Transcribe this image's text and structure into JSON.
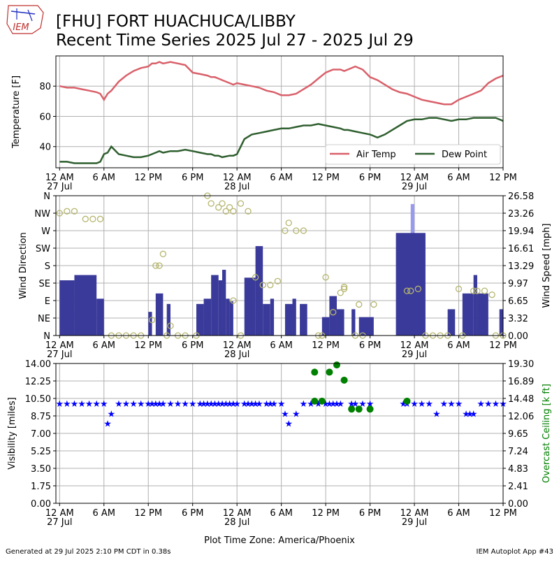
{
  "header": {
    "logo_text": "IEM",
    "title_line1": "[FHU] FORT HUACHUCA/LIBBY",
    "title_line2": "Recent Time Series 2025 Jul 27 - 2025 Jul 29"
  },
  "footer": {
    "generated": "Generated at 29 Jul 2025 2:10 PM CDT in 0.38s",
    "app": "IEM Autoplot App #43",
    "timezone_label": "Plot Time Zone: America/Phoenix"
  },
  "colors": {
    "air_temp": "#d9606a",
    "dew_point": "#2f5f2f",
    "wind_speed_bar": "#3a3a9a",
    "wind_gust_bar": "#9999ee",
    "wind_dir_marker": "#b5b56e",
    "visibility": "#0000ff",
    "ceiling": "#008000",
    "grid": "#b0b0b0"
  },
  "x_axis": {
    "range_hours": [
      -0.5,
      60
    ],
    "ticks": [
      {
        "h": 0,
        "label": "12 AM",
        "date": "27 Jul"
      },
      {
        "h": 6,
        "label": "6 AM",
        "date": ""
      },
      {
        "h": 12,
        "label": "12 PM",
        "date": ""
      },
      {
        "h": 18,
        "label": "6 PM",
        "date": ""
      },
      {
        "h": 24,
        "label": "12 AM",
        "date": "28 Jul"
      },
      {
        "h": 30,
        "label": "6 AM",
        "date": ""
      },
      {
        "h": 36,
        "label": "12 PM",
        "date": ""
      },
      {
        "h": 42,
        "label": "6 PM",
        "date": ""
      },
      {
        "h": 48,
        "label": "12 AM",
        "date": "29 Jul"
      },
      {
        "h": 54,
        "label": "6 AM",
        "date": ""
      },
      {
        "h": 60,
        "label": "12 PM",
        "date": ""
      }
    ]
  },
  "chart_data": [
    {
      "type": "line",
      "ylabel": "Temperature [F]",
      "ylim": [
        26,
        100
      ],
      "yticks": [
        40,
        60,
        80
      ],
      "grid": true,
      "legend_position": "lower-right",
      "x_hours": [
        0,
        1,
        2,
        3,
        4,
        5,
        5.5,
        6,
        6.5,
        7,
        8,
        9,
        10,
        11,
        12,
        12.5,
        13,
        13.5,
        14,
        15,
        16,
        17,
        18,
        19,
        20,
        20.5,
        21,
        21.5,
        22,
        23,
        23.5,
        24,
        25,
        26,
        27,
        28,
        29,
        30,
        31,
        32,
        33,
        34,
        35,
        36,
        37,
        38,
        38.5,
        39,
        40,
        41,
        42,
        43,
        44,
        45,
        46,
        47,
        48,
        49,
        50,
        51,
        52,
        53,
        54,
        55,
        56,
        57,
        58,
        59,
        60
      ],
      "series": [
        {
          "name": "Air Temp",
          "values": [
            80,
            79,
            79,
            78,
            77,
            76,
            75,
            71,
            75,
            77,
            83,
            87,
            90,
            92,
            93,
            95,
            95,
            96,
            95,
            96,
            95,
            94,
            89,
            88,
            87,
            86,
            86,
            85,
            84,
            82,
            81,
            82,
            81,
            80,
            79,
            77,
            76,
            74,
            74,
            75,
            78,
            81,
            85,
            89,
            91,
            91,
            90,
            91,
            93,
            91,
            86,
            84,
            81,
            78,
            76,
            75,
            73,
            71,
            70,
            69,
            68,
            68,
            71,
            73,
            75,
            77,
            82,
            85,
            87
          ]
        },
        {
          "name": "Dew Point",
          "values": [
            30,
            30,
            29,
            29,
            29,
            29,
            30,
            35,
            36,
            40,
            35,
            34,
            33,
            33,
            34,
            35,
            36,
            37,
            36,
            37,
            37,
            38,
            37,
            36,
            35,
            35,
            34,
            34,
            33,
            34,
            34,
            35,
            45,
            48,
            49,
            50,
            51,
            52,
            52,
            53,
            54,
            54,
            55,
            54,
            53,
            52,
            51,
            51,
            50,
            49,
            48,
            46,
            48,
            51,
            54,
            57,
            58,
            58,
            59,
            59,
            58,
            57,
            58,
            58,
            59,
            59,
            59,
            59,
            57
          ]
        }
      ]
    },
    {
      "type": "bar",
      "ylabel": "Wind Direction",
      "ylabel_right": "Wind Speed [mph]",
      "direction_ticks": [
        "N",
        "NE",
        "E",
        "SE",
        "S",
        "SW",
        "W",
        "NW",
        "N"
      ],
      "direction_ylim": [
        0,
        360
      ],
      "speed_ylim": [
        0,
        26.58
      ],
      "speed_ticks": [
        "0.00",
        "3.32",
        "6.65",
        "9.97",
        "13.29",
        "16.61",
        "19.94",
        "23.26",
        "26.58"
      ],
      "grid": true,
      "wind_speed_bars": [
        {
          "start": 0,
          "end": 2,
          "value": 10.5
        },
        {
          "start": 2,
          "end": 5,
          "value": 11.5
        },
        {
          "start": 5,
          "end": 6,
          "value": 7
        },
        {
          "start": 12,
          "end": 12.5,
          "value": 4.5
        },
        {
          "start": 13,
          "end": 14,
          "value": 8
        },
        {
          "start": 14.5,
          "end": 15,
          "value": 6
        },
        {
          "start": 18.5,
          "end": 19.5,
          "value": 6
        },
        {
          "start": 19.5,
          "end": 20.5,
          "value": 7
        },
        {
          "start": 20.5,
          "end": 21.5,
          "value": 11.5
        },
        {
          "start": 21.5,
          "end": 22,
          "value": 10.5
        },
        {
          "start": 22,
          "end": 22.5,
          "value": 12.5
        },
        {
          "start": 22.5,
          "end": 23,
          "value": 7
        },
        {
          "start": 23,
          "end": 23.5,
          "value": 6.5
        },
        {
          "start": 25,
          "end": 26.5,
          "value": 11
        },
        {
          "start": 26.5,
          "end": 27.5,
          "value": 17
        },
        {
          "start": 27.5,
          "end": 28.5,
          "value": 6
        },
        {
          "start": 28.5,
          "end": 29,
          "value": 7
        },
        {
          "start": 30.5,
          "end": 31.5,
          "value": 6
        },
        {
          "start": 31.5,
          "end": 32,
          "value": 7
        },
        {
          "start": 32.5,
          "end": 33.5,
          "value": 6
        },
        {
          "start": 35.5,
          "end": 36.5,
          "value": 3.5
        },
        {
          "start": 36.5,
          "end": 37.5,
          "value": 7.5
        },
        {
          "start": 37.5,
          "end": 38.5,
          "value": 5
        },
        {
          "start": 39.5,
          "end": 40,
          "value": 5
        },
        {
          "start": 40.5,
          "end": 41,
          "value": 3.5
        },
        {
          "start": 41,
          "end": 42.5,
          "value": 3.5
        },
        {
          "start": 45.5,
          "end": 49.5,
          "value": 19.5
        },
        {
          "start": 52.5,
          "end": 53.5,
          "value": 5
        },
        {
          "start": 54.5,
          "end": 56,
          "value": 8
        },
        {
          "start": 56,
          "end": 56.5,
          "value": 11.5
        },
        {
          "start": 56.5,
          "end": 58,
          "value": 8
        },
        {
          "start": 59.5,
          "end": 60,
          "value": 5
        }
      ],
      "wind_gust_bars": [
        {
          "start": 47.5,
          "end": 48,
          "value": 25
        }
      ],
      "wind_direction_points": [
        {
          "h": 0,
          "deg": 315
        },
        {
          "h": 1,
          "deg": 320
        },
        {
          "h": 2,
          "deg": 320
        },
        {
          "h": 3.5,
          "deg": 300
        },
        {
          "h": 4.5,
          "deg": 300
        },
        {
          "h": 5.5,
          "deg": 300
        },
        {
          "h": 7,
          "deg": 0
        },
        {
          "h": 8,
          "deg": 0
        },
        {
          "h": 9,
          "deg": 0
        },
        {
          "h": 10,
          "deg": 0
        },
        {
          "h": 11,
          "deg": 0
        },
        {
          "h": 12.5,
          "deg": 40
        },
        {
          "h": 13,
          "deg": 180
        },
        {
          "h": 13.5,
          "deg": 180
        },
        {
          "h": 14,
          "deg": 210
        },
        {
          "h": 15,
          "deg": 25
        },
        {
          "h": 14.5,
          "deg": 0
        },
        {
          "h": 16,
          "deg": 0
        },
        {
          "h": 17,
          "deg": 0
        },
        {
          "h": 18.5,
          "deg": 0
        },
        {
          "h": 20,
          "deg": 360
        },
        {
          "h": 20.5,
          "deg": 340
        },
        {
          "h": 21.5,
          "deg": 330
        },
        {
          "h": 22,
          "deg": 340
        },
        {
          "h": 22.5,
          "deg": 320
        },
        {
          "h": 23,
          "deg": 330
        },
        {
          "h": 23.5,
          "deg": 320
        },
        {
          "h": 24.5,
          "deg": 340
        },
        {
          "h": 25.5,
          "deg": 320
        },
        {
          "h": 23.5,
          "deg": 90
        },
        {
          "h": 24.5,
          "deg": 0
        },
        {
          "h": 26.5,
          "deg": 150
        },
        {
          "h": 27.5,
          "deg": 130
        },
        {
          "h": 28.5,
          "deg": 130
        },
        {
          "h": 29.5,
          "deg": 140
        },
        {
          "h": 30.5,
          "deg": 270
        },
        {
          "h": 31,
          "deg": 290
        },
        {
          "h": 32,
          "deg": 270
        },
        {
          "h": 33,
          "deg": 270
        },
        {
          "h": 35,
          "deg": 0
        },
        {
          "h": 35.5,
          "deg": 0
        },
        {
          "h": 36,
          "deg": 150
        },
        {
          "h": 37,
          "deg": 60
        },
        {
          "h": 38,
          "deg": 110
        },
        {
          "h": 38.5,
          "deg": 120
        },
        {
          "h": 38.5,
          "deg": 125
        },
        {
          "h": 40.5,
          "deg": 80
        },
        {
          "h": 42.5,
          "deg": 80
        },
        {
          "h": 40,
          "deg": 0
        },
        {
          "h": 41,
          "deg": 0
        },
        {
          "h": 47,
          "deg": 115
        },
        {
          "h": 47.5,
          "deg": 115
        },
        {
          "h": 48.5,
          "deg": 120
        },
        {
          "h": 49.5,
          "deg": 0
        },
        {
          "h": 50.5,
          "deg": 0
        },
        {
          "h": 51.5,
          "deg": 0
        },
        {
          "h": 52.5,
          "deg": 0
        },
        {
          "h": 54,
          "deg": 120
        },
        {
          "h": 54.5,
          "deg": 0
        },
        {
          "h": 56,
          "deg": 115
        },
        {
          "h": 56.5,
          "deg": 115
        },
        {
          "h": 57.5,
          "deg": 115
        },
        {
          "h": 58.5,
          "deg": 105
        },
        {
          "h": 59,
          "deg": 0
        },
        {
          "h": 60,
          "deg": 0
        }
      ]
    },
    {
      "type": "scatter",
      "ylabel": "Visibility [miles]",
      "ylabel_right": "Overcast Ceiling [k ft]",
      "ylim": [
        0,
        14
      ],
      "yticks": [
        "0.00",
        "1.75",
        "3.50",
        "5.25",
        "7.00",
        "8.75",
        "10.50",
        "12.25",
        "14.00"
      ],
      "right_ylim": [
        0,
        19.3
      ],
      "right_yticks": [
        "0.00",
        "2.41",
        "4.83",
        "7.24",
        "9.65",
        "12.06",
        "14.48",
        "16.89",
        "19.30"
      ],
      "grid": true,
      "visibility_points": [
        {
          "h": 0,
          "v": 10
        },
        {
          "h": 1,
          "v": 10
        },
        {
          "h": 2,
          "v": 10
        },
        {
          "h": 3,
          "v": 10
        },
        {
          "h": 4,
          "v": 10
        },
        {
          "h": 5,
          "v": 10
        },
        {
          "h": 6,
          "v": 10
        },
        {
          "h": 6.5,
          "v": 8
        },
        {
          "h": 7,
          "v": 9
        },
        {
          "h": 8,
          "v": 10
        },
        {
          "h": 9,
          "v": 10
        },
        {
          "h": 10,
          "v": 10
        },
        {
          "h": 11,
          "v": 10
        },
        {
          "h": 12,
          "v": 10
        },
        {
          "h": 12.5,
          "v": 10
        },
        {
          "h": 13,
          "v": 10
        },
        {
          "h": 13.5,
          "v": 10
        },
        {
          "h": 14,
          "v": 10
        },
        {
          "h": 15,
          "v": 10
        },
        {
          "h": 16,
          "v": 10
        },
        {
          "h": 17,
          "v": 10
        },
        {
          "h": 18,
          "v": 10
        },
        {
          "h": 19,
          "v": 10
        },
        {
          "h": 19.5,
          "v": 10
        },
        {
          "h": 20,
          "v": 10
        },
        {
          "h": 20.5,
          "v": 10
        },
        {
          "h": 21,
          "v": 10
        },
        {
          "h": 21.5,
          "v": 10
        },
        {
          "h": 22,
          "v": 10
        },
        {
          "h": 22.5,
          "v": 10
        },
        {
          "h": 23,
          "v": 10
        },
        {
          "h": 23.5,
          "v": 10
        },
        {
          "h": 24,
          "v": 10
        },
        {
          "h": 25,
          "v": 10
        },
        {
          "h": 25.5,
          "v": 10
        },
        {
          "h": 26,
          "v": 10
        },
        {
          "h": 26.5,
          "v": 10
        },
        {
          "h": 27,
          "v": 10
        },
        {
          "h": 28,
          "v": 10
        },
        {
          "h": 28.5,
          "v": 10
        },
        {
          "h": 29,
          "v": 10
        },
        {
          "h": 30,
          "v": 10
        },
        {
          "h": 30.5,
          "v": 9
        },
        {
          "h": 31,
          "v": 8
        },
        {
          "h": 32,
          "v": 9
        },
        {
          "h": 33,
          "v": 10
        },
        {
          "h": 34,
          "v": 10
        },
        {
          "h": 35,
          "v": 10
        },
        {
          "h": 36,
          "v": 10
        },
        {
          "h": 36.5,
          "v": 10
        },
        {
          "h": 37,
          "v": 10
        },
        {
          "h": 37.5,
          "v": 10
        },
        {
          "h": 38,
          "v": 10
        },
        {
          "h": 39.5,
          "v": 10
        },
        {
          "h": 40,
          "v": 10
        },
        {
          "h": 41,
          "v": 10
        },
        {
          "h": 42,
          "v": 10
        },
        {
          "h": 46.5,
          "v": 10
        },
        {
          "h": 47,
          "v": 10
        },
        {
          "h": 48,
          "v": 10
        },
        {
          "h": 49,
          "v": 10
        },
        {
          "h": 50,
          "v": 10
        },
        {
          "h": 51,
          "v": 9
        },
        {
          "h": 52,
          "v": 10
        },
        {
          "h": 53,
          "v": 10
        },
        {
          "h": 54,
          "v": 10
        },
        {
          "h": 55,
          "v": 9
        },
        {
          "h": 55.5,
          "v": 9
        },
        {
          "h": 56,
          "v": 9
        },
        {
          "h": 57,
          "v": 10
        },
        {
          "h": 58,
          "v": 10
        },
        {
          "h": 59,
          "v": 10
        },
        {
          "h": 60,
          "v": 10
        }
      ],
      "ceiling_points": [
        {
          "h": 34.5,
          "kft": 18.1
        },
        {
          "h": 34.5,
          "kft": 14.1
        },
        {
          "h": 35.5,
          "kft": 14.1
        },
        {
          "h": 36.5,
          "kft": 18.1
        },
        {
          "h": 37.5,
          "kft": 19.1
        },
        {
          "h": 38.5,
          "kft": 17.0
        },
        {
          "h": 39.5,
          "kft": 13.0
        },
        {
          "h": 40.5,
          "kft": 13.0
        },
        {
          "h": 42,
          "kft": 13.0
        },
        {
          "h": 47,
          "kft": 14.1
        }
      ]
    }
  ]
}
